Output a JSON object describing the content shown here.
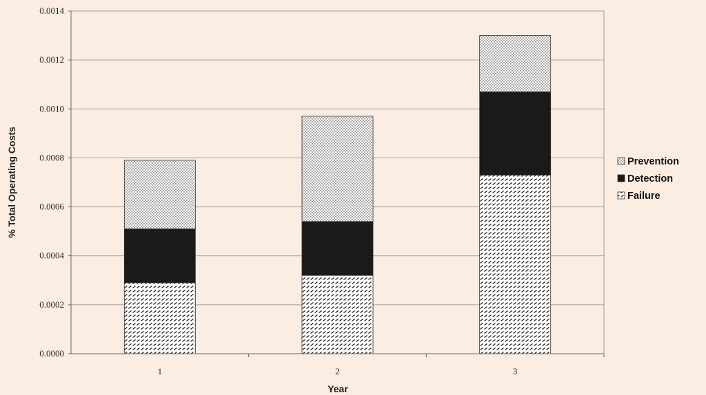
{
  "chart_data": {
    "type": "bar",
    "stacked": true,
    "title": "",
    "xlabel": "Year",
    "ylabel": "% Total Operating Costs",
    "categories": [
      "1",
      "2",
      "3"
    ],
    "ylim": [
      0,
      0.0014
    ],
    "y_ticks": [
      0.0,
      0.0002,
      0.0004,
      0.0006,
      0.0008,
      0.001,
      0.0012,
      0.0014
    ],
    "y_tick_labels": [
      "0.0000",
      "0.0002",
      "0.0004",
      "0.0006",
      "0.0008",
      "0.0010",
      "0.0012",
      "0.0014"
    ],
    "grid": "horizontal",
    "legend_position": "right",
    "series": [
      {
        "name": "Failure",
        "pattern": "diagonal-hatch",
        "values": [
          0.00029,
          0.00032,
          0.00073
        ]
      },
      {
        "name": "Detection",
        "pattern": "solid-black",
        "values": [
          0.00022,
          0.00022,
          0.00034
        ]
      },
      {
        "name": "Prevention",
        "pattern": "dots",
        "values": [
          0.00028,
          0.00043,
          0.00023
        ]
      }
    ],
    "legend_order": [
      "Prevention",
      "Detection",
      "Failure"
    ],
    "colors": {
      "background": "#fbede2",
      "bar_fill": "#ffffff",
      "ink": "#1a1a1a",
      "grid": "#9a9a9a"
    }
  }
}
